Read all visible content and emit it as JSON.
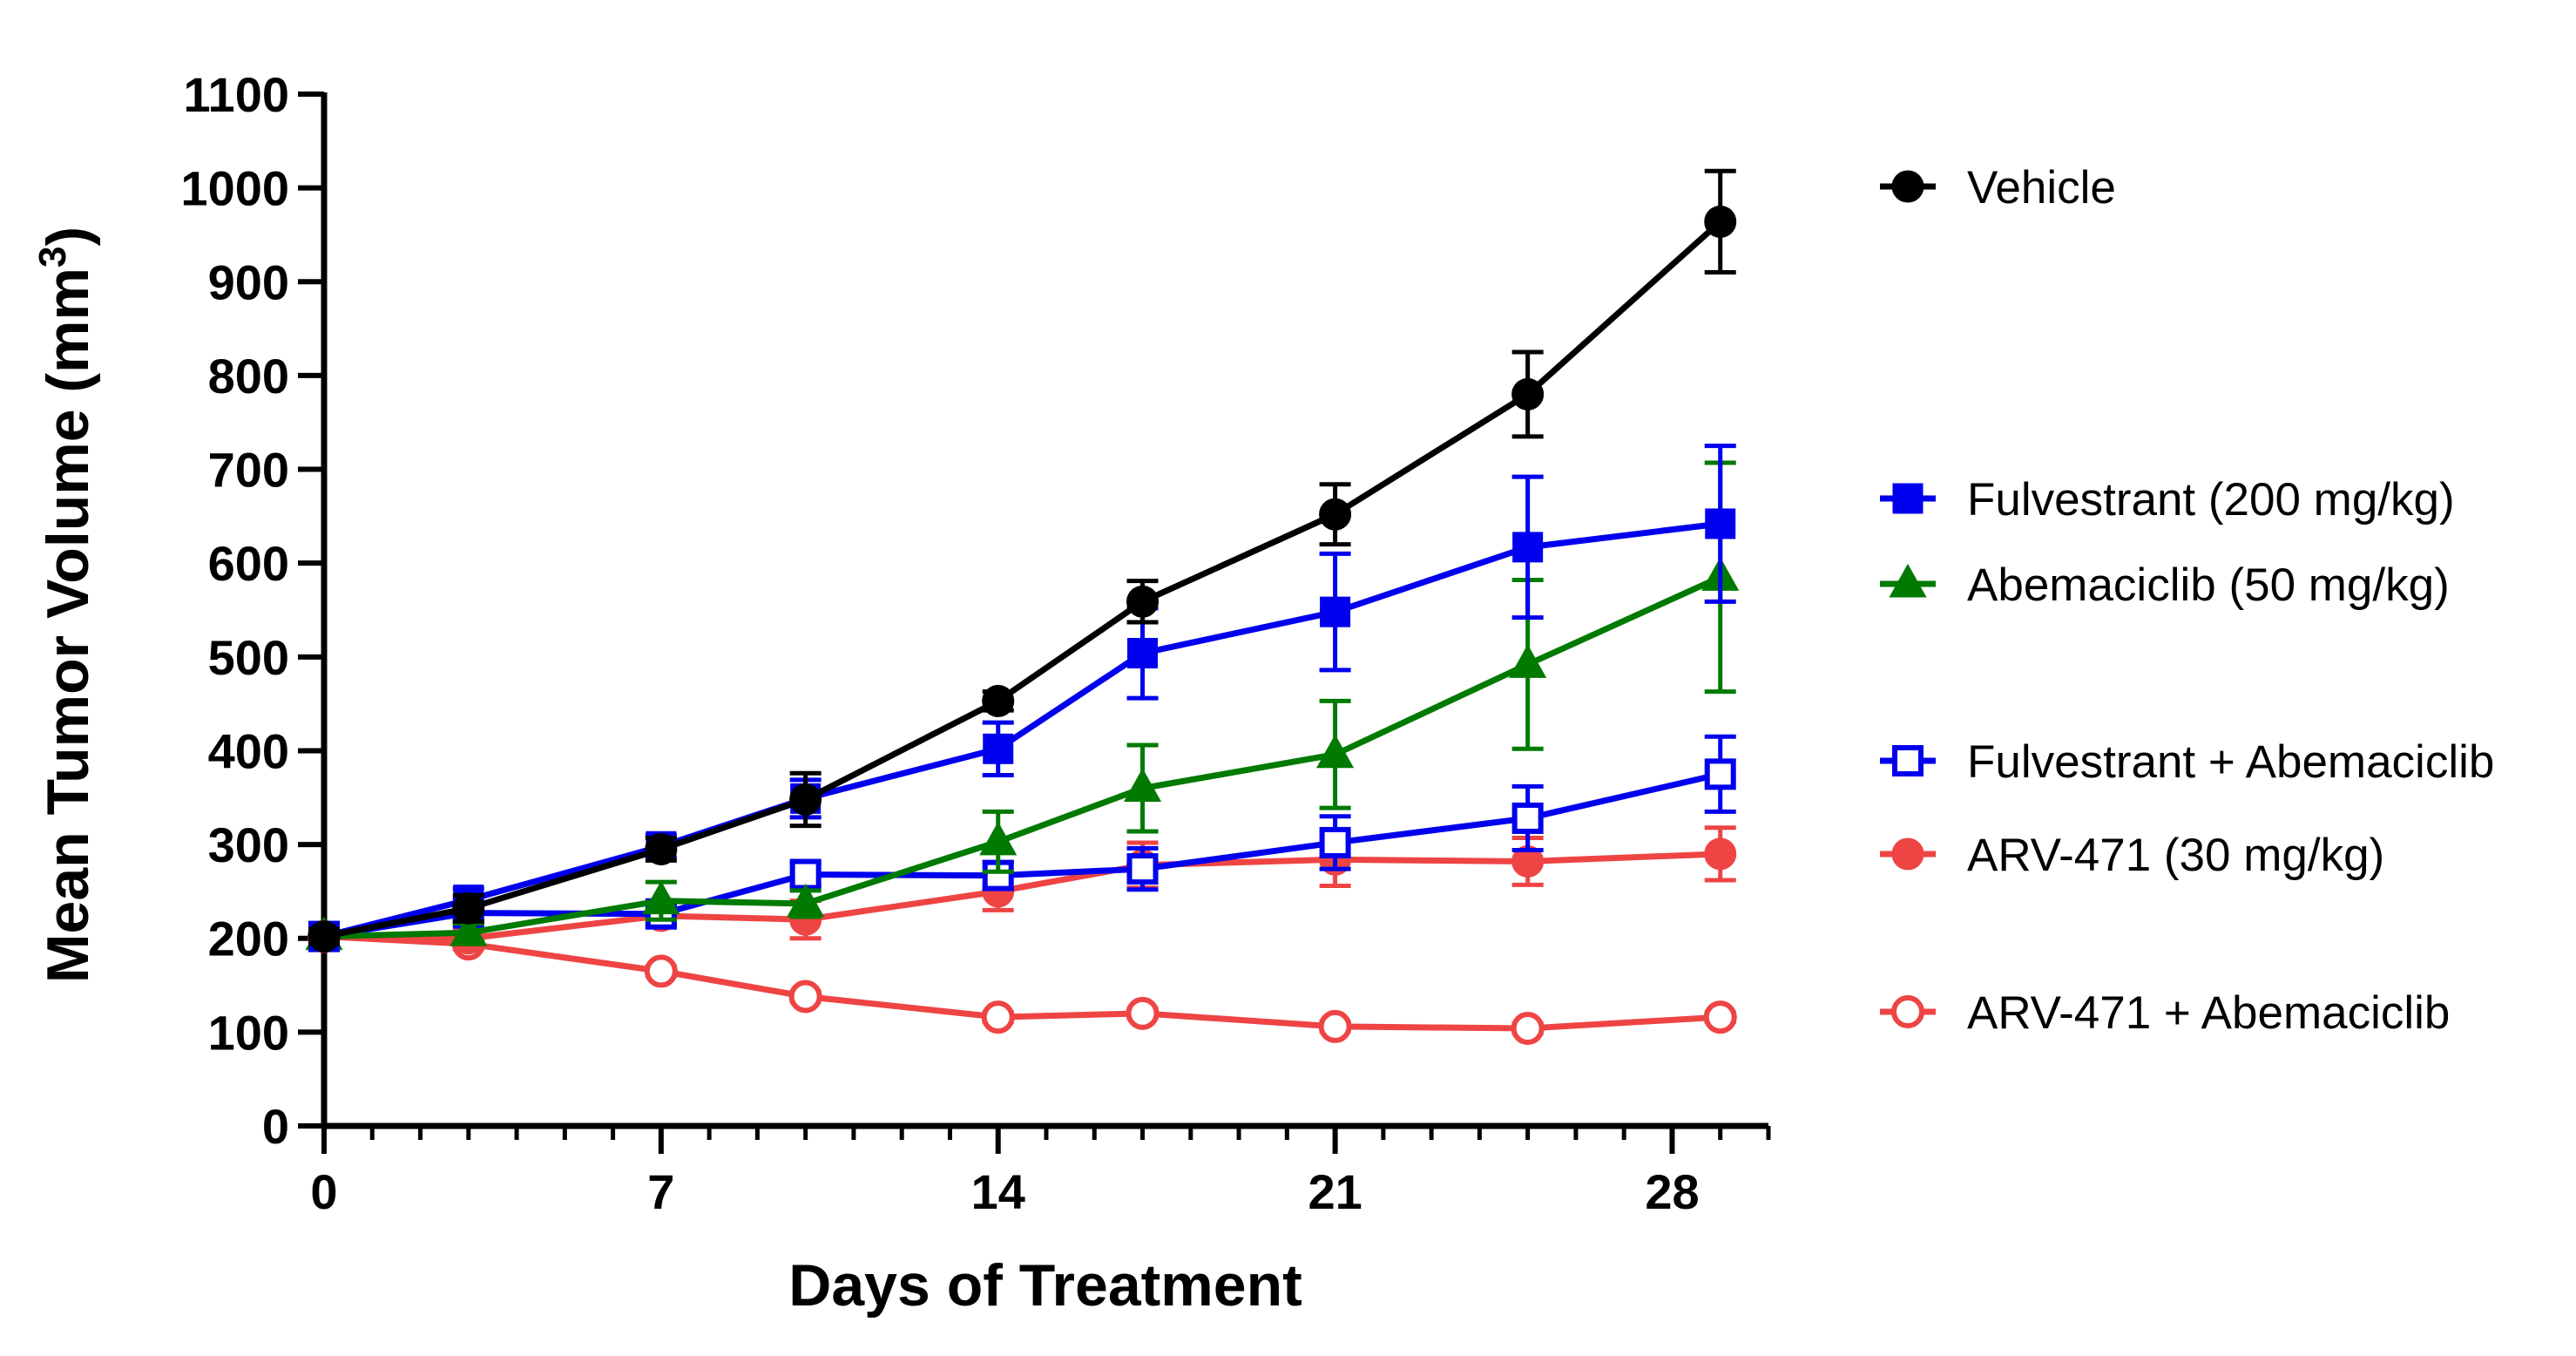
{
  "chart_data": {
    "type": "line",
    "xlabel": "Days of Treatment",
    "ylabel": "Mean Tumor Volume (mm",
    "ylabel_sup": "3",
    "ylabel_close": ")",
    "xlim": [
      0,
      30
    ],
    "ylim": [
      0,
      1100
    ],
    "x_ticks": [
      0,
      7,
      14,
      21,
      28
    ],
    "y_ticks": [
      0,
      100,
      200,
      300,
      400,
      500,
      600,
      700,
      800,
      900,
      1000,
      1100
    ],
    "grid": false,
    "legend_position": "right",
    "series": [
      {
        "name": "Vehicle",
        "color": "#000000",
        "marker": "circle-filled",
        "x": [
          0,
          3,
          7,
          10,
          14,
          17,
          21,
          25,
          29
        ],
        "y": [
          202,
          232,
          295,
          348,
          453,
          559,
          652,
          780,
          964
        ],
        "err": [
          8,
          14,
          12,
          28,
          10,
          22,
          32,
          45,
          54
        ]
      },
      {
        "name": "Fulvestrant (200 mg/kg)",
        "color": "#0000EE",
        "marker": "square-filled",
        "x": [
          0,
          3,
          7,
          10,
          14,
          17,
          21,
          25,
          29
        ],
        "y": [
          202,
          241,
          298,
          349,
          402,
          504,
          548,
          617,
          642
        ],
        "err": [
          8,
          12,
          12,
          20,
          28,
          48,
          62,
          75,
          83
        ]
      },
      {
        "name": "Abemaciclib (50 mg/kg)",
        "color": "#007A00",
        "marker": "triangle-filled",
        "x": [
          0,
          3,
          7,
          10,
          14,
          17,
          21,
          25,
          29
        ],
        "y": [
          202,
          206,
          240,
          237,
          303,
          360,
          396,
          492,
          585
        ],
        "err": [
          8,
          10,
          20,
          14,
          32,
          46,
          57,
          90,
          122
        ]
      },
      {
        "name": "Fulvestrant + Abemaciclib",
        "color": "#0000EE",
        "marker": "square-open",
        "x": [
          0,
          3,
          7,
          10,
          14,
          17,
          21,
          25,
          29
        ],
        "y": [
          202,
          227,
          226,
          268,
          267,
          274,
          302,
          328,
          375
        ],
        "err": [
          8,
          10,
          10,
          12,
          14,
          22,
          28,
          34,
          40
        ]
      },
      {
        "name": "ARV-471 (30 mg/kg)",
        "color": "#EE4444",
        "marker": "circle-filled",
        "x": [
          0,
          3,
          7,
          10,
          14,
          17,
          21,
          25,
          29
        ],
        "y": [
          202,
          200,
          224,
          220,
          250,
          278,
          284,
          282,
          290
        ],
        "err": [
          8,
          8,
          12,
          20,
          20,
          24,
          28,
          25,
          28
        ]
      },
      {
        "name": "ARV-471 + Abemaciclib",
        "color": "#EE4444",
        "marker": "circle-open",
        "x": [
          0,
          3,
          7,
          10,
          14,
          17,
          21,
          25,
          29
        ],
        "y": [
          202,
          194,
          165,
          138,
          116,
          120,
          106,
          104,
          116
        ],
        "err": [
          5,
          5,
          5,
          5,
          5,
          5,
          5,
          5,
          5
        ]
      }
    ]
  }
}
